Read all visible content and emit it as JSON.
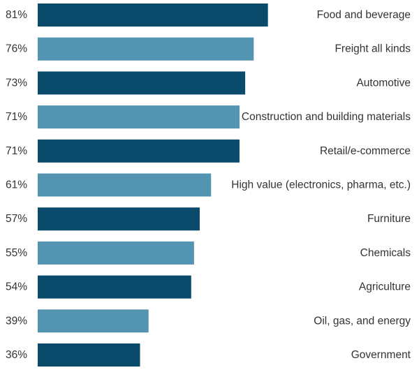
{
  "chart_data": {
    "type": "bar",
    "orientation": "horizontal",
    "categories": [
      "Food and beverage",
      "Freight all kinds",
      "Automotive",
      "Construction and building materials",
      "Retail/e-commerce",
      "High value (electronics, pharma, etc.)",
      "Furniture",
      "Chemicals",
      "Agriculture",
      "Oil, gas, and energy",
      "Government"
    ],
    "values": [
      81,
      76,
      73,
      71,
      71,
      61,
      57,
      55,
      54,
      39,
      36
    ],
    "value_labels": [
      "81%",
      "76%",
      "73%",
      "71%",
      "71%",
      "61%",
      "57%",
      "55%",
      "54%",
      "39%",
      "36%"
    ],
    "colors": [
      "#0a4a6b",
      "#5394b1"
    ],
    "title": "",
    "xlabel": "",
    "ylabel": "",
    "grid": false,
    "legend": "none"
  }
}
